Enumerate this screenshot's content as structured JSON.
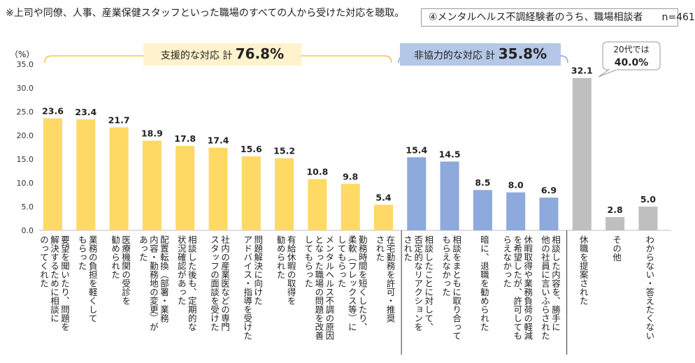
{
  "note": "※上司や同僚、人事、産業保健スタッフといった職場のすべての人から受けた対応を聴取。",
  "legend": {
    "label": "④メンタルヘルス不調経験者のうち、職場相談者",
    "n": "n=461"
  },
  "colors": {
    "supportive": "#FFD966",
    "uncooperative": "#8EA9DB",
    "other": "#BFBFBF",
    "supportive_box": "#FFF2CC",
    "uncooperative_box": "#B4C7E7"
  },
  "groups": {
    "supportive": {
      "label": "支援的な対応 計",
      "value": "76.8%"
    },
    "uncooperative": {
      "label": "非協力的な対応 計",
      "value": "35.8%"
    }
  },
  "callout": {
    "line1": "20代では",
    "line2": "40.0%"
  },
  "chart_data": {
    "type": "bar",
    "ylabel": "（%）",
    "ylim": [
      0,
      35
    ],
    "yticks": [
      "0.0",
      "5.0",
      "10.0",
      "15.0",
      "20.0",
      "25.0",
      "30.0",
      "35.0"
    ],
    "categories": [
      {
        "lines": [
          "要望を聞いたり、問題を",
          "解決するために相談に",
          "のってくれた"
        ],
        "group": "supportive"
      },
      {
        "lines": [
          "業務の負担を軽くして",
          "もらった"
        ],
        "group": "supportive"
      },
      {
        "lines": [
          "医療機関の受診を",
          "勧められた"
        ],
        "group": "supportive"
      },
      {
        "lines": [
          "配置転換（部署・業務",
          "内容・勤務地の変更）が",
          "あった"
        ],
        "group": "supportive"
      },
      {
        "lines": [
          "相談した後も、定期的な",
          "状況確認があった"
        ],
        "group": "supportive"
      },
      {
        "lines": [
          "社内の産業医などの専門",
          "スタッフの面談を受けた"
        ],
        "group": "supportive"
      },
      {
        "lines": [
          "問題解決に向けた",
          "アドバイス・指導を受けた"
        ],
        "group": "supportive"
      },
      {
        "lines": [
          "有給休暇の取得を",
          "勧められた"
        ],
        "group": "supportive"
      },
      {
        "lines": [
          "メンタルヘルス不調の原因",
          "となった職場の問題を改善",
          "してもらった"
        ],
        "group": "supportive"
      },
      {
        "lines": [
          "勤務時間を短くしたり、",
          "柔軟（フレックス等）に",
          "してもらった"
        ],
        "group": "supportive"
      },
      {
        "lines": [
          "在宅勤務を許可・推奨",
          "された"
        ],
        "group": "supportive"
      },
      {
        "lines": [
          "相談したことに対して、",
          "否定的なリアクションを",
          "された"
        ],
        "group": "uncooperative"
      },
      {
        "lines": [
          "相談をまともに取り合って",
          "もらえなかった"
        ],
        "group": "uncooperative"
      },
      {
        "lines": [
          "暗に、退職を勧められた"
        ],
        "group": "uncooperative"
      },
      {
        "lines": [
          "休暇取得や業務負荷の軽減",
          "を希望したが、許可しても",
          "らえなかった"
        ],
        "group": "uncooperative"
      },
      {
        "lines": [
          "相談した内容を、勝手に",
          "他の社員に言いふらされた"
        ],
        "group": "uncooperative"
      },
      {
        "lines": [
          "休職を提案された"
        ],
        "group": "other"
      },
      {
        "lines": [
          "その他"
        ],
        "group": "other"
      },
      {
        "lines": [
          "わからない・答えたくない"
        ],
        "group": "other"
      }
    ],
    "values": [
      23.6,
      23.4,
      21.7,
      18.9,
      17.8,
      17.4,
      15.6,
      15.2,
      10.8,
      9.8,
      5.4,
      15.4,
      14.5,
      8.5,
      8.0,
      6.9,
      32.1,
      2.8,
      5.0
    ],
    "value_labels": [
      "23.6",
      "23.4",
      "21.7",
      "18.9",
      "17.8",
      "17.4",
      "15.6",
      "15.2",
      "10.8",
      "9.8",
      "5.4",
      "15.4",
      "14.5",
      "8.5",
      "8.0",
      "6.9",
      "32.1",
      "2.8",
      "5.0"
    ]
  }
}
